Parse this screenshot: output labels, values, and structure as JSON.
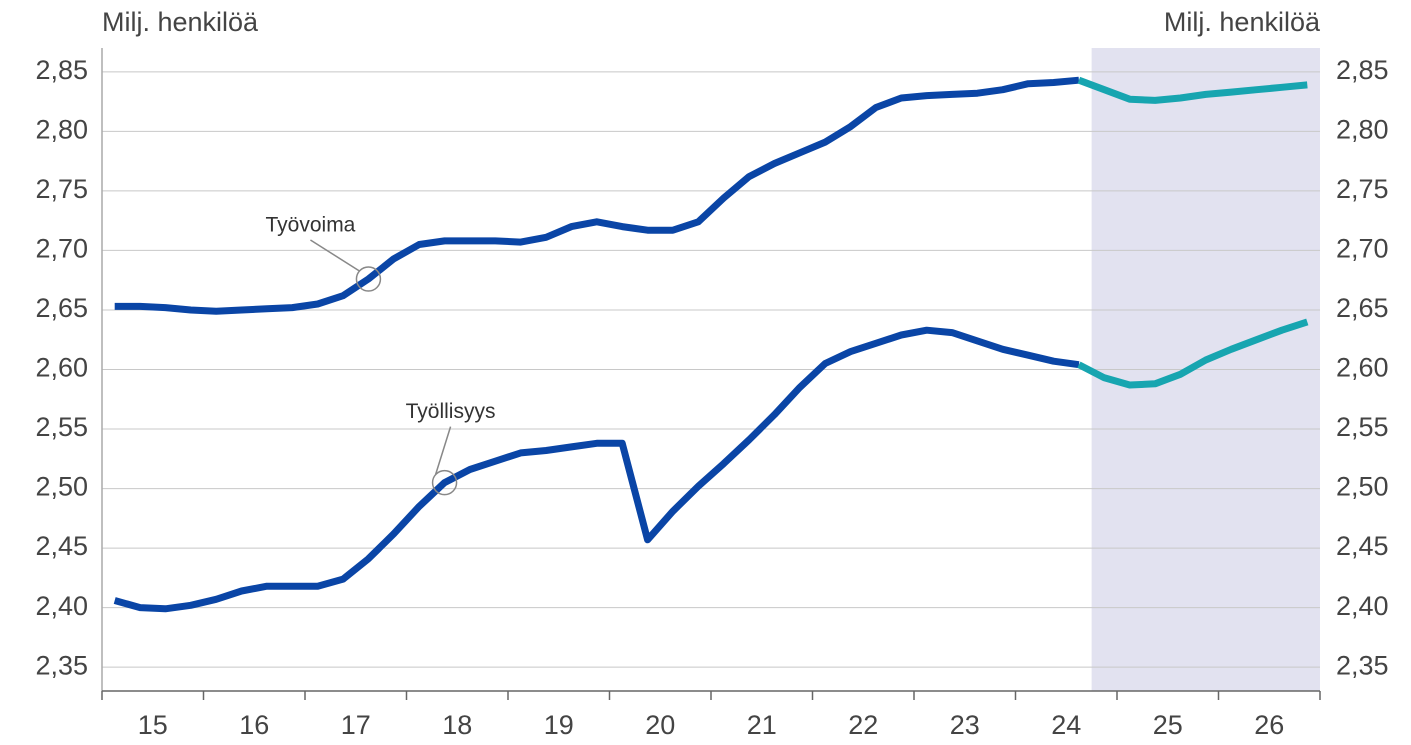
{
  "chart_data": {
    "type": "line",
    "y_label": "Milj. henkilöä",
    "y2_label": "Milj. henkilöä",
    "x": [
      15.125,
      15.375,
      15.625,
      15.875,
      16.125,
      16.375,
      16.625,
      16.875,
      17.125,
      17.375,
      17.625,
      17.875,
      18.125,
      18.375,
      18.625,
      18.875,
      19.125,
      19.375,
      19.625,
      19.875,
      20.125,
      20.375,
      20.625,
      20.875,
      21.125,
      21.375,
      21.625,
      21.875,
      22.125,
      22.375,
      22.625,
      22.875,
      23.125,
      23.375,
      23.625,
      23.875,
      24.125,
      24.375,
      24.625,
      24.875,
      25.125,
      25.375,
      25.625,
      25.875,
      26.125,
      26.375,
      26.625,
      26.875
    ],
    "xlim": [
      15,
      27
    ],
    "xticks": [
      {
        "value": 15.5,
        "label": "15"
      },
      {
        "value": 16.5,
        "label": "16"
      },
      {
        "value": 17.5,
        "label": "17"
      },
      {
        "value": 18.5,
        "label": "18"
      },
      {
        "value": 19.5,
        "label": "19"
      },
      {
        "value": 20.5,
        "label": "20"
      },
      {
        "value": 21.5,
        "label": "21"
      },
      {
        "value": 22.5,
        "label": "22"
      },
      {
        "value": 23.5,
        "label": "23"
      },
      {
        "value": 24.5,
        "label": "24"
      },
      {
        "value": 25.5,
        "label": "25"
      },
      {
        "value": 26.5,
        "label": "26"
      }
    ],
    "ylim": [
      2.33,
      2.87
    ],
    "yticks": [
      {
        "value": 2.35,
        "label": "2,35"
      },
      {
        "value": 2.4,
        "label": "2,40"
      },
      {
        "value": 2.45,
        "label": "2,45"
      },
      {
        "value": 2.5,
        "label": "2,50"
      },
      {
        "value": 2.55,
        "label": "2,55"
      },
      {
        "value": 2.6,
        "label": "2,60"
      },
      {
        "value": 2.65,
        "label": "2,65"
      },
      {
        "value": 2.7,
        "label": "2,70"
      },
      {
        "value": 2.75,
        "label": "2,75"
      },
      {
        "value": 2.8,
        "label": "2,80"
      },
      {
        "value": 2.85,
        "label": "2,85"
      }
    ],
    "y2lim": [
      2.33,
      2.87
    ],
    "y2ticks": [
      {
        "value": 2.35,
        "label": "2,35"
      },
      {
        "value": 2.4,
        "label": "2,40"
      },
      {
        "value": 2.45,
        "label": "2,45"
      },
      {
        "value": 2.5,
        "label": "2,50"
      },
      {
        "value": 2.55,
        "label": "2,55"
      },
      {
        "value": 2.6,
        "label": "2,60"
      },
      {
        "value": 2.65,
        "label": "2,65"
      },
      {
        "value": 2.7,
        "label": "2,70"
      },
      {
        "value": 2.75,
        "label": "2,75"
      },
      {
        "value": 2.8,
        "label": "2,80"
      },
      {
        "value": 2.85,
        "label": "2,85"
      }
    ],
    "grid": true,
    "forecast_from": 24.75,
    "forecast_color": "#17a5b0",
    "shade_color": "#e2e2f0",
    "series": [
      {
        "name": "Työvoima",
        "color": "#0a45a6",
        "values": [
          2.653,
          2.653,
          2.652,
          2.65,
          2.649,
          2.65,
          2.651,
          2.652,
          2.655,
          2.662,
          2.676,
          2.693,
          2.705,
          2.708,
          2.708,
          2.708,
          2.707,
          2.711,
          2.72,
          2.724,
          2.72,
          2.717,
          2.717,
          2.724,
          2.744,
          2.762,
          2.773,
          2.782,
          2.791,
          2.804,
          2.82,
          2.828,
          2.83,
          2.831,
          2.832,
          2.835,
          2.84,
          2.841,
          2.843,
          2.835,
          2.827,
          2.826,
          2.828,
          2.831,
          2.833,
          2.835,
          2.837,
          2.839
        ]
      },
      {
        "name": "Työllisyys",
        "color": "#0a45a6",
        "values": [
          2.406,
          2.4,
          2.399,
          2.402,
          2.407,
          2.414,
          2.418,
          2.418,
          2.418,
          2.424,
          2.441,
          2.462,
          2.485,
          2.505,
          2.516,
          2.523,
          2.53,
          2.532,
          2.535,
          2.538,
          2.538,
          2.457,
          2.481,
          2.502,
          2.521,
          2.541,
          2.562,
          2.585,
          2.605,
          2.615,
          2.622,
          2.629,
          2.633,
          2.631,
          2.624,
          2.617,
          2.612,
          2.607,
          2.604,
          2.593,
          2.587,
          2.588,
          2.596,
          2.608,
          2.617,
          2.625,
          2.633,
          2.64
        ]
      }
    ]
  }
}
